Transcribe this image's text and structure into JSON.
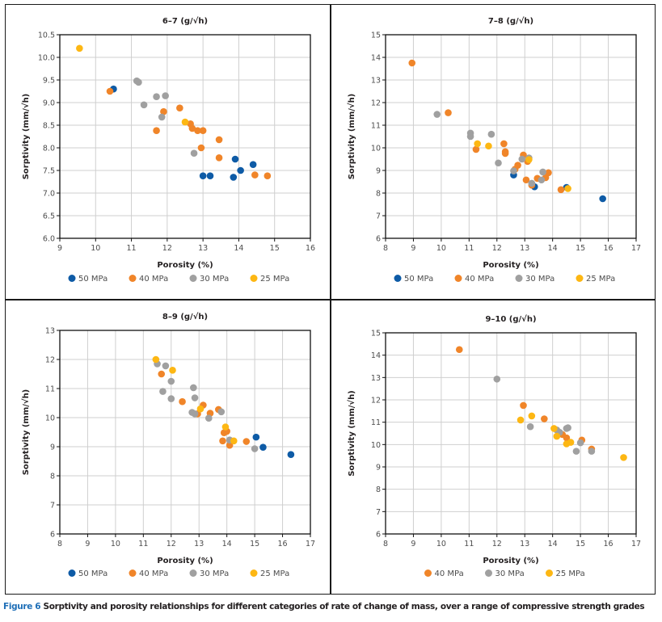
{
  "figure": {
    "caption_label": "Figure 6",
    "caption_text": " Sorptivity and porosity relationships for different categories of rate of change of mass, over a range of compressive strength grades"
  },
  "colors": {
    "50 MPa": "#0e5ba6",
    "40 MPa": "#f08529",
    "30 MPa": "#a0a0a0",
    "25 MPa": "#fdb713"
  },
  "chart_data": [
    {
      "type": "scatter",
      "title": "6–7 (g/√h)",
      "xlabel": "Porosity (%)",
      "ylabel": "Sorptivity (mm/√h)",
      "xlim": [
        9,
        16
      ],
      "ylim": [
        6,
        10.5
      ],
      "xticks": [
        9,
        10,
        11,
        12,
        13,
        14,
        15,
        16
      ],
      "yticks": [
        6.0,
        6.5,
        7.0,
        7.5,
        8.0,
        8.5,
        9.0,
        9.5,
        10.0,
        10.5
      ],
      "ytick_decimals": 1,
      "grid": true,
      "legend_position": "bottom",
      "series": [
        {
          "name": "50 MPa",
          "points": [
            [
              10.5,
              9.3
            ],
            [
              13.0,
              7.38
            ],
            [
              13.2,
              7.38
            ],
            [
              13.85,
              7.35
            ],
            [
              13.9,
              7.75
            ],
            [
              14.05,
              7.5
            ],
            [
              14.4,
              7.63
            ]
          ]
        },
        {
          "name": "40 MPa",
          "points": [
            [
              10.4,
              9.25
            ],
            [
              11.7,
              8.38
            ],
            [
              11.9,
              8.8
            ],
            [
              12.35,
              8.88
            ],
            [
              12.65,
              8.53
            ],
            [
              12.7,
              8.43
            ],
            [
              12.85,
              8.38
            ],
            [
              13.0,
              8.38
            ],
            [
              12.95,
              8.0
            ],
            [
              13.45,
              8.18
            ],
            [
              13.45,
              7.78
            ],
            [
              14.45,
              7.4
            ],
            [
              14.8,
              7.38
            ]
          ]
        },
        {
          "name": "30 MPa",
          "points": [
            [
              11.15,
              9.48
            ],
            [
              11.2,
              9.45
            ],
            [
              11.35,
              8.95
            ],
            [
              11.7,
              9.13
            ],
            [
              11.95,
              9.15
            ],
            [
              11.85,
              8.68
            ],
            [
              12.75,
              7.88
            ]
          ]
        },
        {
          "name": "25 MPa",
          "points": [
            [
              9.55,
              10.2
            ],
            [
              12.5,
              8.57
            ]
          ]
        }
      ]
    },
    {
      "type": "scatter",
      "title": "7–8 (g/√h)",
      "xlabel": "Porosity (%)",
      "ylabel": "Sorptivity (mm/√h)",
      "xlim": [
        8,
        17
      ],
      "ylim": [
        6,
        15
      ],
      "xticks": [
        8,
        9,
        10,
        11,
        12,
        13,
        14,
        15,
        16,
        17
      ],
      "yticks": [
        6,
        7,
        8,
        9,
        10,
        11,
        12,
        13,
        14,
        15
      ],
      "ytick_decimals": 0,
      "grid": true,
      "legend_position": "bottom",
      "series": [
        {
          "name": "50 MPa",
          "points": [
            [
              12.6,
              8.8
            ],
            [
              13.35,
              8.28
            ],
            [
              14.5,
              8.25
            ],
            [
              15.8,
              7.75
            ]
          ]
        },
        {
          "name": "40 MPa",
          "points": [
            [
              8.95,
              13.75
            ],
            [
              10.25,
              11.55
            ],
            [
              11.25,
              9.93
            ],
            [
              12.25,
              10.18
            ],
            [
              12.3,
              9.83
            ],
            [
              12.3,
              9.75
            ],
            [
              12.65,
              9.05
            ],
            [
              12.75,
              9.23
            ],
            [
              12.95,
              9.68
            ],
            [
              13.1,
              9.4
            ],
            [
              13.05,
              8.58
            ],
            [
              13.25,
              8.35
            ],
            [
              13.45,
              8.65
            ],
            [
              13.75,
              8.68
            ],
            [
              13.85,
              8.9
            ],
            [
              14.3,
              8.15
            ]
          ]
        },
        {
          "name": "30 MPa",
          "points": [
            [
              9.85,
              11.48
            ],
            [
              11.05,
              10.65
            ],
            [
              11.05,
              10.5
            ],
            [
              11.8,
              10.6
            ],
            [
              12.05,
              9.33
            ],
            [
              12.6,
              8.98
            ],
            [
              12.9,
              9.5
            ],
            [
              13.15,
              9.55
            ],
            [
              13.25,
              8.43
            ],
            [
              13.6,
              8.58
            ],
            [
              13.65,
              8.93
            ]
          ]
        },
        {
          "name": "25 MPa",
          "points": [
            [
              11.3,
              10.18
            ],
            [
              11.7,
              10.08
            ],
            [
              13.15,
              9.48
            ],
            [
              14.55,
              8.2
            ]
          ]
        }
      ]
    },
    {
      "type": "scatter",
      "title": "8–9 (g/√h)",
      "xlabel": "Porosity (%)",
      "ylabel": "Sorptivity (mm/√h)",
      "xlim": [
        8,
        17
      ],
      "ylim": [
        6,
        13
      ],
      "xticks": [
        8,
        9,
        10,
        11,
        12,
        13,
        14,
        15,
        16,
        17
      ],
      "yticks": [
        6,
        7,
        8,
        9,
        10,
        11,
        12,
        13
      ],
      "ytick_decimals": 0,
      "grid": true,
      "legend_position": "bottom",
      "series": [
        {
          "name": "50 MPa",
          "points": [
            [
              15.05,
              9.33
            ],
            [
              15.3,
              8.98
            ],
            [
              16.3,
              8.73
            ]
          ]
        },
        {
          "name": "40 MPa",
          "points": [
            [
              11.65,
              11.5
            ],
            [
              12.4,
              10.55
            ],
            [
              12.95,
              10.13
            ],
            [
              13.15,
              10.43
            ],
            [
              13.4,
              10.15
            ],
            [
              13.7,
              10.28
            ],
            [
              13.9,
              9.48
            ],
            [
              14.0,
              9.53
            ],
            [
              13.85,
              9.2
            ],
            [
              14.1,
              9.05
            ],
            [
              14.7,
              9.18
            ]
          ]
        },
        {
          "name": "30 MPa",
          "points": [
            [
              11.5,
              11.85
            ],
            [
              11.8,
              11.78
            ],
            [
              12.0,
              11.25
            ],
            [
              11.7,
              10.9
            ],
            [
              12.0,
              10.65
            ],
            [
              12.8,
              11.03
            ],
            [
              12.85,
              10.68
            ],
            [
              12.75,
              10.18
            ],
            [
              12.85,
              10.13
            ],
            [
              13.35,
              9.98
            ],
            [
              13.8,
              10.2
            ],
            [
              14.1,
              9.23
            ],
            [
              15.0,
              8.93
            ]
          ]
        },
        {
          "name": "25 MPa",
          "points": [
            [
              11.45,
              12.0
            ],
            [
              12.05,
              11.63
            ],
            [
              13.05,
              10.3
            ],
            [
              13.95,
              9.68
            ],
            [
              14.25,
              9.2
            ]
          ]
        }
      ]
    },
    {
      "type": "scatter",
      "title": "9–10 (g/√h)",
      "xlabel": "Porosity (%)",
      "ylabel": "Sorptivity (mm/√h)",
      "xlim": [
        8,
        17
      ],
      "ylim": [
        6,
        15
      ],
      "xticks": [
        8,
        9,
        10,
        11,
        12,
        13,
        14,
        15,
        16,
        17
      ],
      "yticks": [
        6,
        7,
        8,
        9,
        10,
        11,
        12,
        13,
        14,
        15
      ],
      "ytick_decimals": 0,
      "grid": true,
      "legend_position": "bottom",
      "series": [
        {
          "name": "40 MPa",
          "points": [
            [
              10.65,
              14.25
            ],
            [
              12.95,
              11.75
            ],
            [
              13.7,
              11.15
            ],
            [
              14.35,
              10.45
            ],
            [
              14.5,
              10.3
            ],
            [
              15.05,
              10.2
            ],
            [
              15.4,
              9.8
            ]
          ]
        },
        {
          "name": "30 MPa",
          "points": [
            [
              12.0,
              12.93
            ],
            [
              13.2,
              10.8
            ],
            [
              14.15,
              10.65
            ],
            [
              14.25,
              10.55
            ],
            [
              14.5,
              10.72
            ],
            [
              14.55,
              10.75
            ],
            [
              14.85,
              9.7
            ],
            [
              15.0,
              10.08
            ],
            [
              15.4,
              9.7
            ]
          ]
        },
        {
          "name": "25 MPa",
          "points": [
            [
              12.85,
              11.1
            ],
            [
              13.25,
              11.28
            ],
            [
              14.05,
              10.72
            ],
            [
              14.15,
              10.37
            ],
            [
              14.5,
              10.03
            ],
            [
              14.65,
              10.1
            ],
            [
              16.55,
              9.42
            ]
          ]
        }
      ]
    }
  ]
}
